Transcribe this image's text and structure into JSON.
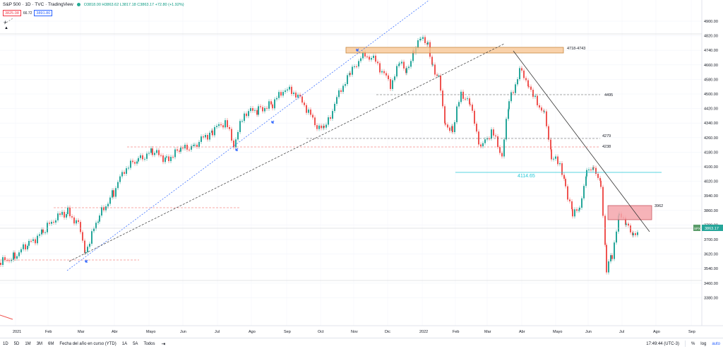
{
  "header": {
    "title": "S&P 500 · 1D · TVC · TradingView",
    "ohlc": "O3818.00 H3863.62 L3817.18 C3863.17 +72.80 (+1.92%)",
    "sell_price": "3825.08",
    "spread": "66.72",
    "buy_price": "3891.80"
  },
  "price_axis": {
    "labels": [
      "4900.00",
      "4820.00",
      "4740.00",
      "4660.00",
      "4580.00",
      "4500.00",
      "4420.00",
      "4340.00",
      "4260.00",
      "4180.00",
      "4100.00",
      "4020.00",
      "3940.00",
      "3860.00",
      "3780.00",
      "3700.00",
      "3620.00",
      "3540.00",
      "3460.00",
      "3380.00"
    ],
    "symbol_tag": "SPX",
    "last_price": "3863.17"
  },
  "time_axis": {
    "labels": [
      "2021",
      "Feb",
      "Mar",
      "Abr",
      "Mayo",
      "Jun",
      "Jul",
      "Ago",
      "Sep",
      "Oct",
      "Nov",
      "Dic",
      "2022",
      "Feb",
      "Mar",
      "Abr",
      "Mayo",
      "Jun",
      "Jul",
      "Ago",
      "Sep"
    ]
  },
  "annotations": {
    "zone_top": "4718-4743",
    "level_4495": "4495",
    "level_4279": "4279",
    "level_4238": "4238",
    "level_4114": "4114.65",
    "level_3962": "3962"
  },
  "toolbar": {
    "timeframes": [
      "1D",
      "5D",
      "1M",
      "3M",
      "6M",
      "Fecha del año en curso (YTD)",
      "1A",
      "5A",
      "Todos"
    ],
    "time": "17:49:44 (UTC-3)",
    "percent": "%",
    "log": "log",
    "auto": "auto"
  },
  "colors": {
    "up": "#26a69a",
    "down": "#ef5350",
    "accent": "#2962ff",
    "zone_orange": "#f7c796",
    "zone_red": "#f4a6ac",
    "cyan": "#22c7d6"
  },
  "icons": {
    "range": "calendar-range-icon",
    "plus": "plus-icon",
    "collapse": "collapse-arrow-icon"
  }
}
